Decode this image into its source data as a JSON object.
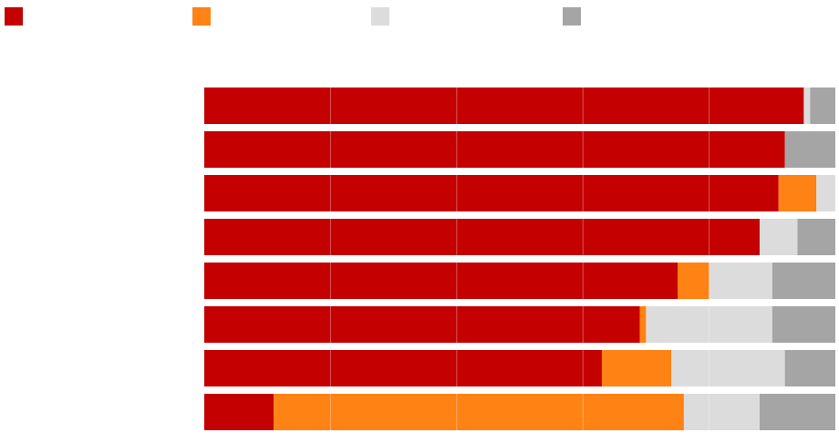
{
  "chart_data": {
    "type": "stacked-bar-horizontal",
    "categories": [
      null,
      null,
      null,
      null,
      null,
      null,
      null,
      null
    ],
    "series": [
      {
        "color": "#c40000",
        "values": [
          95,
          92,
          91,
          88,
          75,
          69,
          63,
          11
        ]
      },
      {
        "color": "#ff8214",
        "values": [
          0,
          0,
          6,
          0,
          5,
          1,
          11,
          65
        ]
      },
      {
        "color": "#dcdcdc",
        "values": [
          1,
          0,
          3,
          6,
          10,
          20,
          18,
          12
        ]
      },
      {
        "color": "#a5a5a5",
        "values": [
          4,
          8,
          0,
          6,
          10,
          10,
          8,
          12
        ]
      }
    ],
    "xlim": [
      0,
      100
    ],
    "xticks": [
      20,
      40,
      60,
      80
    ],
    "grid": true,
    "legend": "top"
  }
}
